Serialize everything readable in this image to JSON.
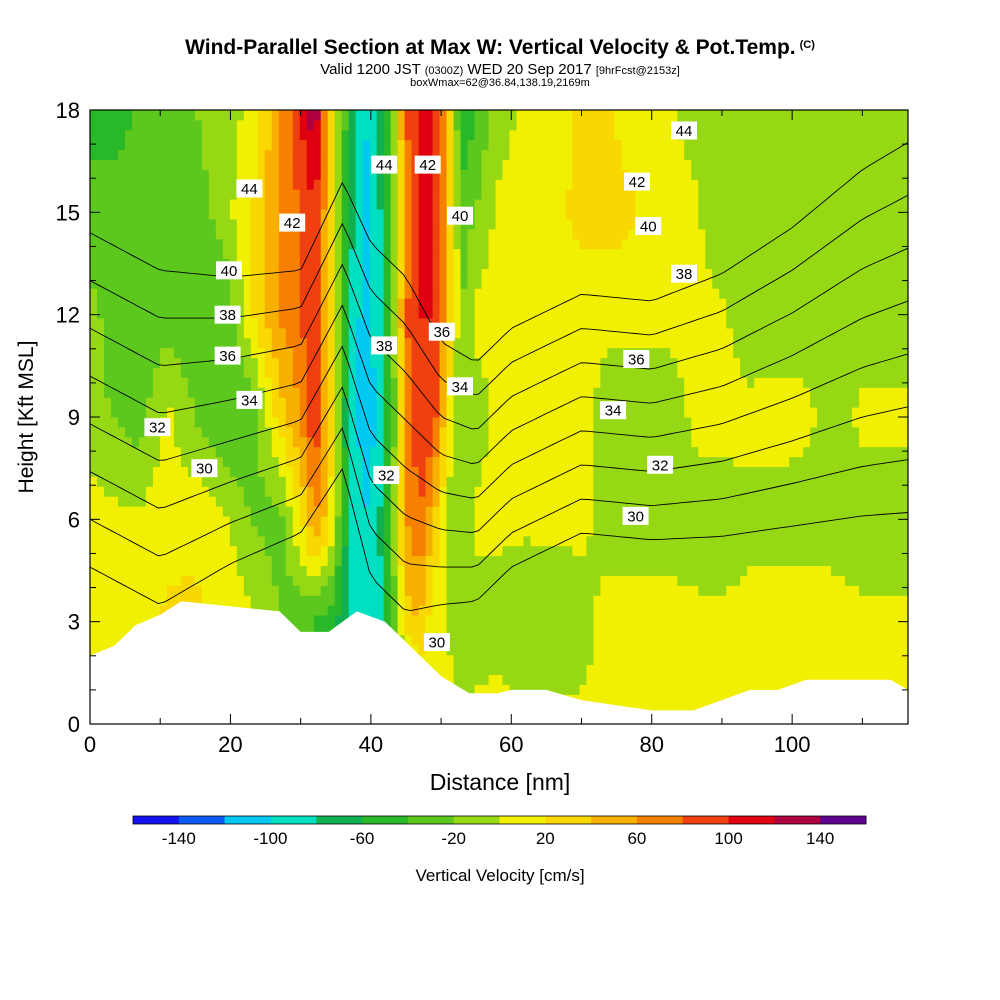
{
  "title": {
    "main": "Wind-Parallel Section at Max W: Vertical Velocity & Pot.Temp.",
    "mark": "(C)",
    "valid_prefix": "Valid 1200 JST",
    "valid_utc": "(0300Z)",
    "valid_date": "WED 20 Sep 2017",
    "forecast": "[9hrFcst@2153z]",
    "box": "boxWmax=62@36.84,138.19,2169m"
  },
  "chart_data": {
    "type": "heatmap",
    "title": "Wind-Parallel Section at Max W: Vertical Velocity & Pot.Temp.",
    "xlabel": "Distance [nm]",
    "ylabel": "Height [Kft MSL]",
    "xlim": [
      0,
      116.5
    ],
    "ylim": [
      0,
      18
    ],
    "xticks": [
      0,
      20,
      40,
      60,
      80,
      100
    ],
    "yticks": [
      0,
      3,
      6,
      9,
      12,
      15,
      18
    ],
    "colorbar": {
      "label": "Vertical Velocity [cm/s]",
      "tick_labels": [
        "-140",
        "-100",
        "-60",
        "-20",
        "20",
        "60",
        "100",
        "140"
      ],
      "tick_values": [
        -140,
        -100,
        -60,
        -20,
        20,
        60,
        100,
        140
      ],
      "levels": [
        -160,
        -140,
        -120,
        -100,
        -80,
        -60,
        -40,
        -20,
        0,
        20,
        40,
        60,
        80,
        100,
        120,
        140,
        160
      ],
      "colors": [
        "#1010f0",
        "#0a5af5",
        "#00c8f0",
        "#00e0c0",
        "#10b050",
        "#28b828",
        "#5cc81e",
        "#96d814",
        "#f0f000",
        "#f8d800",
        "#f8b000",
        "#f88000",
        "#f04010",
        "#e00010",
        "#b00040",
        "#600090"
      ]
    },
    "velocity_field": {
      "x": [
        0,
        3,
        7,
        11,
        15,
        19,
        23,
        27,
        30,
        32,
        34,
        37,
        39,
        41,
        43,
        45,
        47,
        49,
        51,
        53,
        55,
        58,
        62,
        66,
        70,
        74,
        78,
        82,
        86,
        90,
        94,
        98,
        102,
        106,
        110,
        116.5
      ],
      "heights": [
        0,
        3,
        6,
        9,
        12,
        15,
        18
      ],
      "values": [
        [
          5,
          -10,
          5,
          10,
          8,
          5,
          0,
          -10,
          -20,
          -40,
          -40,
          -50,
          -60,
          -60,
          -50,
          -40,
          -20,
          5,
          5,
          5,
          5,
          10,
          5,
          5,
          5,
          10,
          10,
          5,
          5,
          5,
          5,
          10,
          10,
          5,
          5,
          5
        ],
        [
          5,
          5,
          5,
          25,
          25,
          15,
          5,
          -20,
          -40,
          -40,
          -50,
          -80,
          -100,
          -90,
          -40,
          30,
          40,
          5,
          0,
          -20,
          -10,
          -10,
          -20,
          -15,
          -10,
          10,
          15,
          15,
          5,
          5,
          10,
          10,
          10,
          10,
          5,
          5
        ],
        [
          10,
          5,
          5,
          10,
          15,
          5,
          -20,
          -30,
          20,
          60,
          30,
          -80,
          -100,
          -90,
          -20,
          60,
          80,
          40,
          -10,
          -20,
          5,
          5,
          5,
          5,
          5,
          -10,
          -20,
          -20,
          -10,
          -15,
          -10,
          -10,
          -10,
          -10,
          -15,
          -15
        ],
        [
          -10,
          -20,
          -30,
          5,
          -20,
          -40,
          -40,
          30,
          60,
          100,
          40,
          -90,
          -110,
          -100,
          -40,
          60,
          100,
          90,
          20,
          -20,
          -10,
          5,
          5,
          5,
          5,
          -10,
          -20,
          -20,
          5,
          10,
          10,
          10,
          5,
          -10,
          5,
          5
        ],
        [
          -10,
          -30,
          -40,
          -30,
          -40,
          -40,
          20,
          60,
          80,
          100,
          40,
          -80,
          -110,
          -90,
          -30,
          80,
          100,
          100,
          40,
          -20,
          5,
          10,
          10,
          10,
          10,
          5,
          10,
          10,
          10,
          5,
          -20,
          -15,
          -10,
          -10,
          -10,
          -10
        ],
        [
          -40,
          -20,
          -40,
          -40,
          -30,
          -10,
          20,
          60,
          80,
          100,
          40,
          -70,
          -110,
          -90,
          -30,
          60,
          100,
          100,
          50,
          -30,
          -20,
          5,
          10,
          15,
          25,
          30,
          20,
          10,
          5,
          -20,
          -10,
          -15,
          -20,
          -20,
          -10,
          -10
        ],
        [
          -40,
          -60,
          -30,
          -20,
          -20,
          -10,
          5,
          60,
          100,
          140,
          40,
          -60,
          -100,
          -80,
          -20,
          80,
          110,
          110,
          40,
          -60,
          -40,
          -10,
          5,
          10,
          25,
          20,
          10,
          5,
          -10,
          -20,
          -20,
          -20,
          -20,
          -20,
          -15,
          -15
        ]
      ]
    },
    "terrain_kft": {
      "x": [
        0,
        3.5,
        6.5,
        10,
        13,
        27,
        30,
        34,
        38,
        42,
        45,
        50,
        54,
        57,
        58,
        60,
        65,
        70,
        80,
        86,
        90,
        94,
        98,
        102,
        114,
        116.5
      ],
      "height": [
        2.0,
        2.3,
        2.9,
        3.2,
        3.6,
        3.3,
        2.7,
        2.7,
        3.3,
        3.0,
        2.4,
        1.4,
        0.9,
        0.9,
        0.9,
        1.0,
        1.0,
        0.7,
        0.4,
        0.4,
        0.7,
        1.0,
        1.0,
        1.3,
        1.3,
        1.0
      ]
    },
    "theta_contours": {
      "levels": [
        30,
        32,
        34,
        36,
        38,
        40,
        42,
        44
      ],
      "x": [
        0,
        10,
        20,
        30,
        36,
        40,
        45,
        50,
        55,
        60,
        70,
        80,
        90,
        100,
        110,
        116.5
      ],
      "height_of_30": [
        4.6,
        3.5,
        4.7,
        5.6,
        7.5,
        4.3,
        3.3,
        3.5,
        3.6,
        4.6,
        5.6,
        5.4,
        5.5,
        5.8,
        6.1,
        6.2
      ],
      "spacing_kft": [
        1.4,
        1.4,
        1.2,
        1.1,
        1.2,
        1.4,
        1.4,
        1.1,
        1.0,
        1.0,
        1.0,
        1.0,
        1.1,
        1.25,
        1.45,
        1.55
      ],
      "labels": [
        {
          "text": "44",
          "x": 22.7,
          "y": 15.7
        },
        {
          "text": "42",
          "x": 28.8,
          "y": 14.7
        },
        {
          "text": "40",
          "x": 19.8,
          "y": 13.3
        },
        {
          "text": "38",
          "x": 19.6,
          "y": 12.0
        },
        {
          "text": "36",
          "x": 19.6,
          "y": 10.8
        },
        {
          "text": "34",
          "x": 22.7,
          "y": 9.5
        },
        {
          "text": "32",
          "x": 9.6,
          "y": 8.7
        },
        {
          "text": "30",
          "x": 16.3,
          "y": 7.5
        },
        {
          "text": "44",
          "x": 41.9,
          "y": 16.4
        },
        {
          "text": "42",
          "x": 48.1,
          "y": 16.4
        },
        {
          "text": "40",
          "x": 52.7,
          "y": 14.9
        },
        {
          "text": "38",
          "x": 41.9,
          "y": 11.1
        },
        {
          "text": "36",
          "x": 50.1,
          "y": 11.5
        },
        {
          "text": "34",
          "x": 52.7,
          "y": 9.9
        },
        {
          "text": "32",
          "x": 42.2,
          "y": 7.3
        },
        {
          "text": "30",
          "x": 49.4,
          "y": 2.4
        },
        {
          "text": "44",
          "x": 84.6,
          "y": 17.4
        },
        {
          "text": "42",
          "x": 77.9,
          "y": 15.9
        },
        {
          "text": "40",
          "x": 79.5,
          "y": 14.6
        },
        {
          "text": "38",
          "x": 84.6,
          "y": 13.2
        },
        {
          "text": "36",
          "x": 77.8,
          "y": 10.7
        },
        {
          "text": "34",
          "x": 74.5,
          "y": 9.2
        },
        {
          "text": "32",
          "x": 81.2,
          "y": 7.6
        },
        {
          "text": "30",
          "x": 77.7,
          "y": 6.1
        }
      ]
    }
  }
}
